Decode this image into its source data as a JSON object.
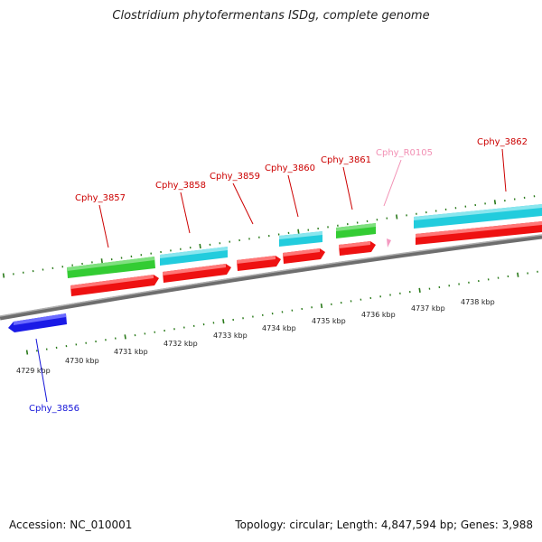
{
  "header": {
    "title": "Clostridium phytofermentans ISDg, complete genome"
  },
  "footer": {
    "accession": "Accession: NC_010001",
    "topology": "Topology: circular; Length: 4,847,594 bp; Genes: 3,988"
  },
  "scale_labels": [
    "4729 kbp",
    "4730 kbp",
    "4731 kbp",
    "4732 kbp",
    "4733 kbp",
    "4734 kbp",
    "4735 kbp",
    "4736 kbp",
    "4737 kbp",
    "4738 kbp"
  ],
  "genes": [
    {
      "name": "Cphy_3856",
      "color": "#1515d8"
    },
    {
      "name": "Cphy_3857",
      "color": "#cc0000"
    },
    {
      "name": "Cphy_3858",
      "color": "#cc0000"
    },
    {
      "name": "Cphy_3859",
      "color": "#cc0000"
    },
    {
      "name": "Cphy_3860",
      "color": "#cc0000"
    },
    {
      "name": "Cphy_3861",
      "color": "#cc0000"
    },
    {
      "name": "Cphy_R0105",
      "color": "#f290b4"
    },
    {
      "name": "Cphy_3862",
      "color": "#cc0000"
    }
  ],
  "colors": {
    "cds": "#ee1111",
    "cds_reverse": "#1a1ae6",
    "cog_green": "#33cc33",
    "cog_cyan": "#22ccdd",
    "rna": "#f49ac1",
    "backbone": "#8a8a8a",
    "tick": "#2a7a1a"
  }
}
